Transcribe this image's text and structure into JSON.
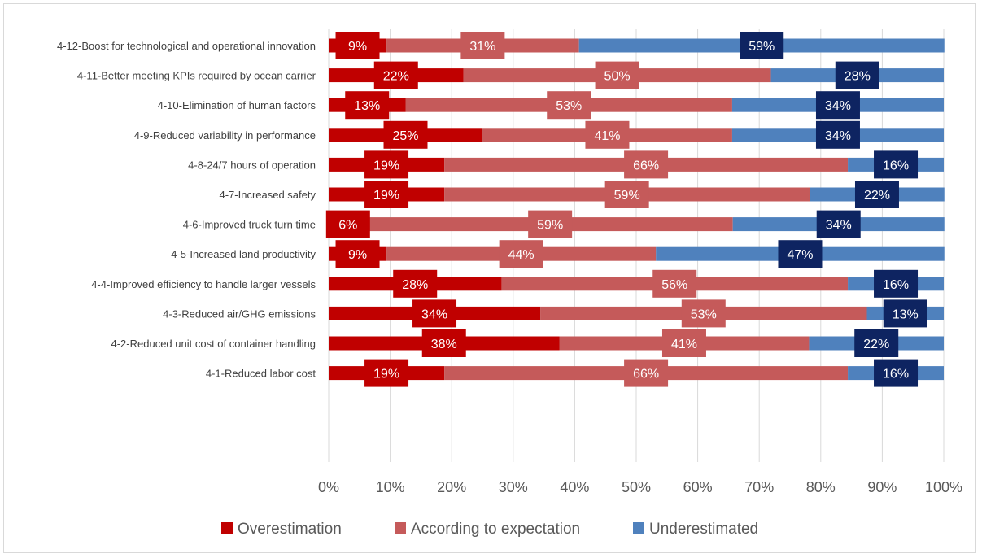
{
  "chart_data": {
    "type": "bar",
    "orientation": "horizontal",
    "stacked": "percent",
    "categories": [
      "4-12-Boost for technological and operational innovation",
      "4-11-Better meeting KPIs required by ocean carrier",
      "4-10-Elimination of human factors",
      "4-9-Reduced variability in performance",
      "4-8-24/7 hours of operation",
      "4-7-Increased safety",
      "4-6-Improved truck turn time",
      "4-5-Increased land productivity",
      "4-4-Improved efficiency to handle larger vessels",
      "4-3-Reduced air/GHG emissions",
      "4-2-Reduced unit cost of container handling",
      "4-1-Reduced labor cost"
    ],
    "series": [
      {
        "name": "Overestimation",
        "color": "#c00000",
        "label_bg": "#c00000",
        "values": [
          9.4,
          21.9,
          12.5,
          25.0,
          18.8,
          18.8,
          6.3,
          9.4,
          28.1,
          34.4,
          37.5,
          18.8
        ],
        "labels": [
          "9%",
          "22%",
          "13%",
          "25%",
          "19%",
          "19%",
          "6%",
          "9%",
          "28%",
          "34%",
          "38%",
          "19%"
        ]
      },
      {
        "name": "According to expectation",
        "color": "#c55a5a",
        "label_bg": "#c55a5a",
        "values": [
          31.3,
          50.0,
          53.1,
          40.6,
          65.6,
          59.4,
          59.4,
          43.8,
          56.3,
          53.1,
          40.6,
          65.6
        ],
        "labels": [
          "31%",
          "50%",
          "53%",
          "41%",
          "66%",
          "59%",
          "59%",
          "44%",
          "56%",
          "53%",
          "41%",
          "66%"
        ]
      },
      {
        "name": "Underestimated",
        "color": "#4f81bd",
        "label_bg": "#0e2461",
        "values": [
          59.4,
          28.1,
          34.4,
          34.4,
          15.6,
          21.9,
          34.4,
          46.9,
          15.6,
          12.5,
          21.9,
          15.6
        ],
        "labels": [
          "59%",
          "28%",
          "34%",
          "34%",
          "16%",
          "22%",
          "34%",
          "47%",
          "16%",
          "13%",
          "22%",
          "16%"
        ]
      }
    ],
    "x_ticks": [
      "0%",
      "10%",
      "20%",
      "30%",
      "40%",
      "50%",
      "60%",
      "70%",
      "80%",
      "90%",
      "100%"
    ],
    "xlim": [
      0,
      100
    ],
    "grid": true,
    "legend_position": "bottom"
  }
}
